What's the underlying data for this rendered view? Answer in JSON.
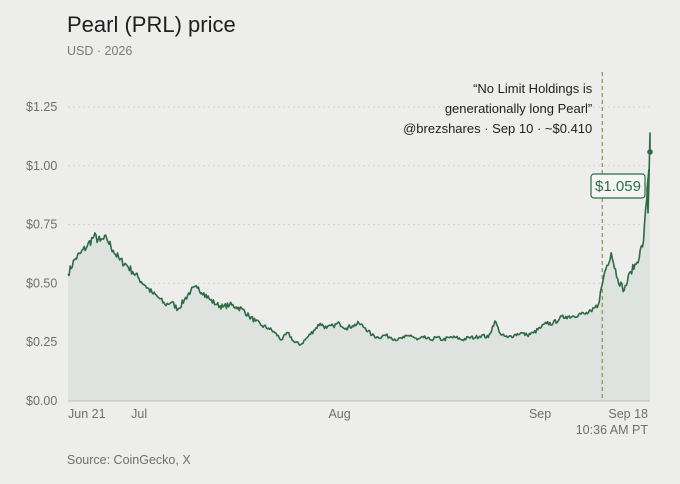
{
  "header": {
    "title": "Pearl (PRL) price",
    "subtitle": "USD · 2026"
  },
  "footer": {
    "source": "Source: CoinGecko, X"
  },
  "colors": {
    "line": "#2e6b45",
    "area": "#dfe3df",
    "grid": "#d4d4d4",
    "event_line": "#8a8f55"
  },
  "chart_data": {
    "type": "line",
    "title": "Pearl (PRL) price",
    "subtitle": "USD · 2026",
    "ylim": [
      0,
      1.25
    ],
    "yticks": [
      {
        "value": 0.0,
        "label": "$0.00"
      },
      {
        "value": 0.25,
        "label": "$0.25"
      },
      {
        "value": 0.5,
        "label": "$0.50"
      },
      {
        "value": 0.75,
        "label": "$0.75"
      },
      {
        "value": 1.0,
        "label": "$1.00"
      },
      {
        "value": 1.25,
        "label": "$1.25"
      }
    ],
    "xlim": [
      "2026-06-20",
      "2026-09-18"
    ],
    "xticks": [
      {
        "date": "2026-06-21",
        "label": "Jun 21"
      },
      {
        "date": "2026-07-01",
        "label": "Jul"
      },
      {
        "date": "2026-08-01",
        "label": "Aug"
      },
      {
        "date": "2026-09-01",
        "label": "Sep"
      },
      {
        "date": "2026-09-18",
        "label": "Sep 18"
      }
    ],
    "x_end_sublabel": "10:36 AM PT",
    "grid": "horizontal dashed",
    "legend": "none",
    "series": [
      {
        "points": [
          [
            "2026-06-20",
            0.54
          ],
          [
            "2026-06-21",
            0.6
          ],
          [
            "2026-06-22",
            0.63
          ],
          [
            "2026-06-23",
            0.66
          ],
          [
            "2026-06-24",
            0.7
          ],
          [
            "2026-06-25",
            0.68
          ],
          [
            "2026-06-26",
            0.69
          ],
          [
            "2026-06-27",
            0.64
          ],
          [
            "2026-06-28",
            0.6
          ],
          [
            "2026-06-29",
            0.58
          ],
          [
            "2026-06-30",
            0.55
          ],
          [
            "2026-07-01",
            0.52
          ],
          [
            "2026-07-02",
            0.49
          ],
          [
            "2026-07-03",
            0.46
          ],
          [
            "2026-07-04",
            0.44
          ],
          [
            "2026-07-05",
            0.41
          ],
          [
            "2026-07-06",
            0.42
          ],
          [
            "2026-07-07",
            0.39
          ],
          [
            "2026-07-08",
            0.43
          ],
          [
            "2026-07-09",
            0.47
          ],
          [
            "2026-07-10",
            0.48
          ],
          [
            "2026-07-11",
            0.46
          ],
          [
            "2026-07-12",
            0.43
          ],
          [
            "2026-07-13",
            0.41
          ],
          [
            "2026-07-14",
            0.4
          ],
          [
            "2026-07-15",
            0.41
          ],
          [
            "2026-07-16",
            0.4
          ],
          [
            "2026-07-17",
            0.39
          ],
          [
            "2026-07-18",
            0.36
          ],
          [
            "2026-07-19",
            0.34
          ],
          [
            "2026-07-20",
            0.32
          ],
          [
            "2026-07-21",
            0.31
          ],
          [
            "2026-07-22",
            0.29
          ],
          [
            "2026-07-23",
            0.26
          ],
          [
            "2026-07-24",
            0.29
          ],
          [
            "2026-07-25",
            0.25
          ],
          [
            "2026-07-26",
            0.24
          ],
          [
            "2026-07-27",
            0.27
          ],
          [
            "2026-07-28",
            0.3
          ],
          [
            "2026-07-29",
            0.33
          ],
          [
            "2026-07-30",
            0.31
          ],
          [
            "2026-07-31",
            0.32
          ],
          [
            "2026-08-01",
            0.33
          ],
          [
            "2026-08-02",
            0.31
          ],
          [
            "2026-08-03",
            0.32
          ],
          [
            "2026-08-04",
            0.33
          ],
          [
            "2026-08-05",
            0.31
          ],
          [
            "2026-08-06",
            0.28
          ],
          [
            "2026-08-07",
            0.27
          ],
          [
            "2026-08-08",
            0.28
          ],
          [
            "2026-08-09",
            0.27
          ],
          [
            "2026-08-10",
            0.26
          ],
          [
            "2026-08-11",
            0.27
          ],
          [
            "2026-08-12",
            0.28
          ],
          [
            "2026-08-13",
            0.26
          ],
          [
            "2026-08-14",
            0.27
          ],
          [
            "2026-08-15",
            0.26
          ],
          [
            "2026-08-16",
            0.27
          ],
          [
            "2026-08-17",
            0.26
          ],
          [
            "2026-08-18",
            0.27
          ],
          [
            "2026-08-19",
            0.27
          ],
          [
            "2026-08-20",
            0.26
          ],
          [
            "2026-08-21",
            0.27
          ],
          [
            "2026-08-22",
            0.27
          ],
          [
            "2026-08-23",
            0.28
          ],
          [
            "2026-08-24",
            0.27
          ],
          [
            "2026-08-25",
            0.34
          ],
          [
            "2026-08-26",
            0.28
          ],
          [
            "2026-08-27",
            0.27
          ],
          [
            "2026-08-28",
            0.28
          ],
          [
            "2026-08-29",
            0.29
          ],
          [
            "2026-08-30",
            0.28
          ],
          [
            "2026-08-31",
            0.29
          ],
          [
            "2026-09-01",
            0.31
          ],
          [
            "2026-09-02",
            0.33
          ],
          [
            "2026-09-03",
            0.33
          ],
          [
            "2026-09-04",
            0.35
          ],
          [
            "2026-09-05",
            0.36
          ],
          [
            "2026-09-06",
            0.36
          ],
          [
            "2026-09-07",
            0.37
          ],
          [
            "2026-09-08",
            0.37
          ],
          [
            "2026-09-09",
            0.38
          ],
          [
            "2026-09-10",
            0.41
          ],
          [
            "2026-09-11",
            0.55
          ],
          [
            "2026-09-12",
            0.63
          ],
          [
            "2026-09-13",
            0.52
          ],
          [
            "2026-09-14",
            0.47
          ],
          [
            "2026-09-15",
            0.55
          ],
          [
            "2026-09-16",
            0.59
          ],
          [
            "2026-09-17",
            0.68
          ],
          [
            "2026-09-18",
            1.059
          ]
        ]
      }
    ],
    "annotations": [
      {
        "date": "2026-09-10",
        "lines": [
          "“No Limit Holdings is",
          "generationally long Pearl”",
          "@brezshares · Sep 10 · ~$0.410"
        ]
      }
    ],
    "last_value": {
      "date": "2026-09-18",
      "value": 1.059,
      "label": "$1.059"
    }
  }
}
